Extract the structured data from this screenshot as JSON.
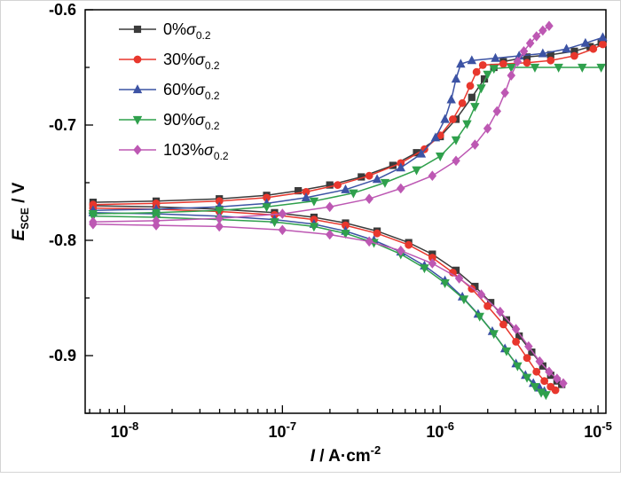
{
  "figure": {
    "background": "#ffffff",
    "frame_color": "#000000"
  },
  "chart_data": {
    "type": "line",
    "title": "",
    "description": "Potentiodynamic polarization curves, potential vs log current density, five stress levels",
    "x_axis": {
      "scale": "log",
      "min_log": -8.25,
      "max_log": -4.95,
      "label": {
        "variable": "I",
        "separator": " / ",
        "unit": "A·cm",
        "exponent": "-2"
      },
      "major_ticks": [
        {
          "log": -8,
          "base": "10",
          "exp": "-8"
        },
        {
          "log": -7,
          "base": "10",
          "exp": "-7"
        },
        {
          "log": -6,
          "base": "10",
          "exp": "-6"
        },
        {
          "log": -5,
          "base": "10",
          "exp": "-5"
        }
      ]
    },
    "y_axis": {
      "min": -0.95,
      "max": -0.6,
      "label": {
        "variable": "E",
        "subscript": "SCE",
        "separator": " / ",
        "unit": "V"
      },
      "major_ticks": [
        {
          "value": -0.6,
          "label": "-0.6"
        },
        {
          "value": -0.7,
          "label": "-0.7"
        },
        {
          "value": -0.8,
          "label": "-0.8"
        },
        {
          "value": -0.9,
          "label": "-0.9"
        }
      ],
      "minor_step": 0.05
    },
    "legend": {
      "position": "top-left"
    },
    "series": [
      {
        "name": "0%σ0.2",
        "label": {
          "prefix": "0%",
          "symbol": "σ",
          "subscript": "0.2"
        },
        "color": "#3b3b3b",
        "marker": "square",
        "branches": {
          "anodic": {
            "logI": [
              -8.2,
              -7.8,
              -7.4,
              -7.1,
              -6.9,
              -6.7,
              -6.5,
              -6.3,
              -6.15,
              -6.0,
              -5.9,
              -5.8,
              -5.72,
              -5.66,
              -5.6,
              -5.45,
              -5.3,
              -5.15,
              -5.05,
              -4.98
            ],
            "E": [
              -0.767,
              -0.766,
              -0.764,
              -0.761,
              -0.757,
              -0.752,
              -0.745,
              -0.735,
              -0.724,
              -0.71,
              -0.695,
              -0.676,
              -0.66,
              -0.65,
              -0.645,
              -0.641,
              -0.639,
              -0.636,
              -0.632,
              -0.629
            ]
          },
          "cathodic": {
            "logI": [
              -8.2,
              -7.8,
              -7.4,
              -7.05,
              -6.8,
              -6.6,
              -6.4,
              -6.2,
              -6.05,
              -5.9,
              -5.78,
              -5.68,
              -5.58,
              -5.5,
              -5.42,
              -5.35,
              -5.3,
              -5.26,
              -5.23
            ],
            "E": [
              -0.77,
              -0.771,
              -0.773,
              -0.776,
              -0.78,
              -0.785,
              -0.792,
              -0.802,
              -0.812,
              -0.826,
              -0.84,
              -0.854,
              -0.869,
              -0.883,
              -0.897,
              -0.909,
              -0.917,
              -0.922,
              -0.925
            ]
          }
        }
      },
      {
        "name": "30%σ0.2",
        "label": {
          "prefix": "30%",
          "symbol": "σ",
          "subscript": "0.2"
        },
        "color": "#e8372d",
        "marker": "circle",
        "branches": {
          "anodic": {
            "logI": [
              -8.2,
              -7.8,
              -7.4,
              -7.1,
              -6.85,
              -6.65,
              -6.45,
              -6.25,
              -6.1,
              -6.0,
              -5.92,
              -5.86,
              -5.81,
              -5.77,
              -5.73,
              -5.6,
              -5.45,
              -5.3,
              -5.15,
              -5.03,
              -4.97
            ],
            "E": [
              -0.769,
              -0.768,
              -0.766,
              -0.763,
              -0.758,
              -0.752,
              -0.744,
              -0.733,
              -0.721,
              -0.709,
              -0.695,
              -0.681,
              -0.666,
              -0.654,
              -0.648,
              -0.647,
              -0.646,
              -0.644,
              -0.64,
              -0.634,
              -0.63
            ]
          },
          "cathodic": {
            "logI": [
              -8.2,
              -7.8,
              -7.4,
              -7.05,
              -6.8,
              -6.6,
              -6.4,
              -6.2,
              -6.05,
              -5.92,
              -5.8,
              -5.7,
              -5.6,
              -5.52,
              -5.45,
              -5.39,
              -5.34,
              -5.3,
              -5.27
            ],
            "E": [
              -0.772,
              -0.773,
              -0.775,
              -0.778,
              -0.782,
              -0.787,
              -0.794,
              -0.804,
              -0.815,
              -0.828,
              -0.842,
              -0.857,
              -0.873,
              -0.888,
              -0.902,
              -0.914,
              -0.922,
              -0.927,
              -0.93
            ]
          }
        }
      },
      {
        "name": "60%σ0.2",
        "label": {
          "prefix": "60%",
          "symbol": "σ",
          "subscript": "0.2"
        },
        "color": "#3c53a4",
        "marker": "triangle-up",
        "branches": {
          "anodic": {
            "logI": [
              -8.2,
              -7.8,
              -7.4,
              -7.1,
              -6.85,
              -6.6,
              -6.4,
              -6.25,
              -6.12,
              -6.03,
              -5.97,
              -5.93,
              -5.9,
              -5.87,
              -5.8,
              -5.65,
              -5.5,
              -5.35,
              -5.2,
              -5.08,
              -4.97
            ],
            "E": [
              -0.774,
              -0.773,
              -0.771,
              -0.768,
              -0.763,
              -0.756,
              -0.747,
              -0.737,
              -0.725,
              -0.711,
              -0.695,
              -0.678,
              -0.66,
              -0.647,
              -0.644,
              -0.642,
              -0.64,
              -0.638,
              -0.634,
              -0.629,
              -0.624
            ]
          },
          "cathodic": {
            "logI": [
              -8.2,
              -7.8,
              -7.4,
              -7.05,
              -6.8,
              -6.6,
              -6.42,
              -6.25,
              -6.1,
              -5.97,
              -5.86,
              -5.76,
              -5.67,
              -5.59,
              -5.52,
              -5.46,
              -5.41,
              -5.37,
              -5.34
            ],
            "E": [
              -0.776,
              -0.777,
              -0.779,
              -0.782,
              -0.786,
              -0.792,
              -0.8,
              -0.81,
              -0.822,
              -0.835,
              -0.849,
              -0.864,
              -0.879,
              -0.894,
              -0.907,
              -0.917,
              -0.924,
              -0.928,
              -0.931
            ]
          }
        }
      },
      {
        "name": "90%σ0.2",
        "label": {
          "prefix": "90%",
          "symbol": "σ",
          "subscript": "0.2"
        },
        "color": "#2fa04c",
        "marker": "triangle-down",
        "branches": {
          "anodic": {
            "logI": [
              -8.2,
              -7.8,
              -7.4,
              -7.1,
              -6.8,
              -6.55,
              -6.35,
              -6.15,
              -6.0,
              -5.9,
              -5.83,
              -5.78,
              -5.74,
              -5.7,
              -5.66,
              -5.55,
              -5.4,
              -5.25,
              -5.1,
              -4.98
            ],
            "E": [
              -0.777,
              -0.776,
              -0.774,
              -0.771,
              -0.766,
              -0.759,
              -0.75,
              -0.739,
              -0.727,
              -0.713,
              -0.699,
              -0.684,
              -0.668,
              -0.656,
              -0.651,
              -0.65,
              -0.65,
              -0.65,
              -0.65,
              -0.65
            ]
          },
          "cathodic": {
            "logI": [
              -8.2,
              -7.8,
              -7.4,
              -7.05,
              -6.8,
              -6.6,
              -6.42,
              -6.25,
              -6.1,
              -5.97,
              -5.85,
              -5.75,
              -5.66,
              -5.58,
              -5.51,
              -5.45,
              -5.4,
              -5.36,
              -5.33
            ],
            "E": [
              -0.779,
              -0.78,
              -0.782,
              -0.784,
              -0.788,
              -0.794,
              -0.802,
              -0.812,
              -0.824,
              -0.837,
              -0.851,
              -0.866,
              -0.881,
              -0.896,
              -0.909,
              -0.919,
              -0.927,
              -0.932,
              -0.934
            ]
          }
        }
      },
      {
        "name": "103%σ0.2",
        "label": {
          "prefix": "103%",
          "symbol": "σ",
          "subscript": "0.2"
        },
        "color": "#bd58b3",
        "marker": "diamond",
        "branches": {
          "anodic": {
            "logI": [
              -8.2,
              -7.8,
              -7.4,
              -7.0,
              -6.7,
              -6.45,
              -6.25,
              -6.05,
              -5.9,
              -5.78,
              -5.7,
              -5.64,
              -5.59,
              -5.55,
              -5.51,
              -5.47,
              -5.43,
              -5.39,
              -5.35,
              -5.31
            ],
            "E": [
              -0.784,
              -0.783,
              -0.781,
              -0.777,
              -0.771,
              -0.764,
              -0.755,
              -0.744,
              -0.731,
              -0.717,
              -0.703,
              -0.688,
              -0.672,
              -0.657,
              -0.645,
              -0.636,
              -0.629,
              -0.623,
              -0.618,
              -0.614
            ]
          },
          "cathodic": {
            "logI": [
              -8.2,
              -7.8,
              -7.4,
              -7.0,
              -6.7,
              -6.45,
              -6.25,
              -6.05,
              -5.88,
              -5.74,
              -5.62,
              -5.52,
              -5.44,
              -5.37,
              -5.31,
              -5.26,
              -5.22
            ],
            "E": [
              -0.786,
              -0.787,
              -0.788,
              -0.791,
              -0.795,
              -0.801,
              -0.809,
              -0.82,
              -0.833,
              -0.847,
              -0.862,
              -0.877,
              -0.892,
              -0.905,
              -0.914,
              -0.92,
              -0.924
            ]
          }
        }
      }
    ]
  }
}
